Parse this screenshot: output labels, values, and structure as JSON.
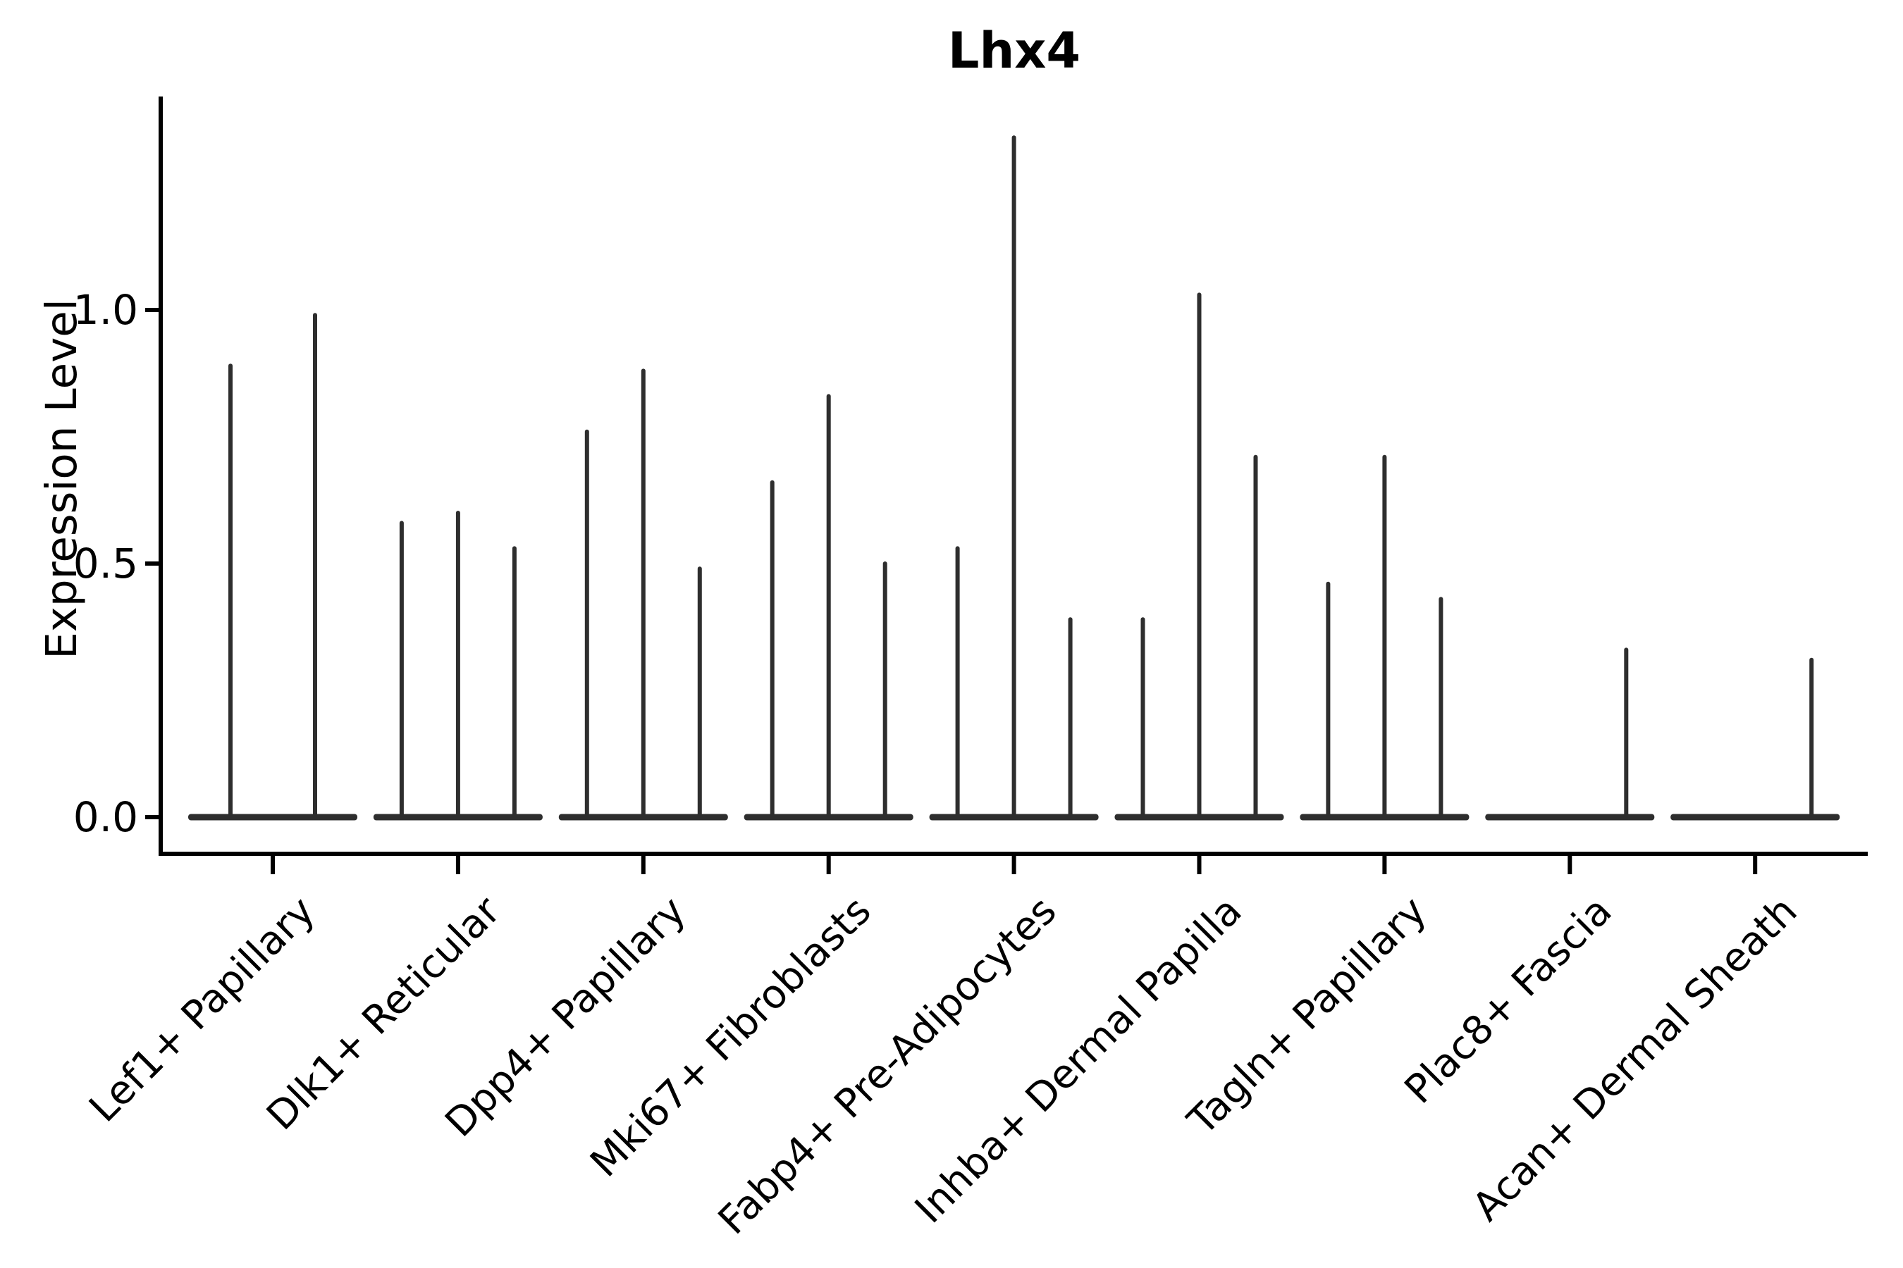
{
  "chart_data": {
    "type": "violin",
    "title": "Lhx4",
    "xlabel": "",
    "ylabel": "Expression Level",
    "ytick_labels": [
      "0.0",
      "0.5",
      "1.0"
    ],
    "ytick_values": [
      0.0,
      0.5,
      1.0
    ],
    "ylim": [
      0.0,
      1.42
    ],
    "grid": false,
    "legend_position": "none",
    "description": "Single-cell violin plot of Lhx4 expression; each cluster shows flat near-zero violins with thin spikes reaching the maximum expression of rare positive cells",
    "categories": [
      {
        "label": "Lef1+ Papillary",
        "violin_peaks": [
          0.89,
          0.99
        ]
      },
      {
        "label": "Dlk1+ Reticular",
        "violin_peaks": [
          0.58,
          0.6,
          0.53
        ]
      },
      {
        "label": "Dpp4+ Papillary",
        "violin_peaks": [
          0.76,
          0.88,
          0.49
        ]
      },
      {
        "label": "Mki67+ Fibroblasts",
        "violin_peaks": [
          0.66,
          0.83,
          0.5
        ]
      },
      {
        "label": "Fabp4+ Pre-Adipocytes",
        "violin_peaks": [
          0.53,
          1.34,
          0.39
        ]
      },
      {
        "label": "Inhba+ Dermal Papilla",
        "violin_peaks": [
          0.39,
          1.03,
          0.71
        ]
      },
      {
        "label": "Tagln+ Papillary",
        "violin_peaks": [
          0.46,
          0.71,
          0.43
        ]
      },
      {
        "label": "Plac8+ Fascia",
        "violin_peaks": [
          0.0,
          0.0,
          0.33
        ]
      },
      {
        "label": "Acan+ Dermal Sheath",
        "violin_peaks": [
          0.0,
          0.0,
          0.31
        ]
      }
    ],
    "colors": {
      "violin_line": "#2e2e2e",
      "axis": "#000000",
      "text": "#000000",
      "background": "#ffffff"
    }
  }
}
